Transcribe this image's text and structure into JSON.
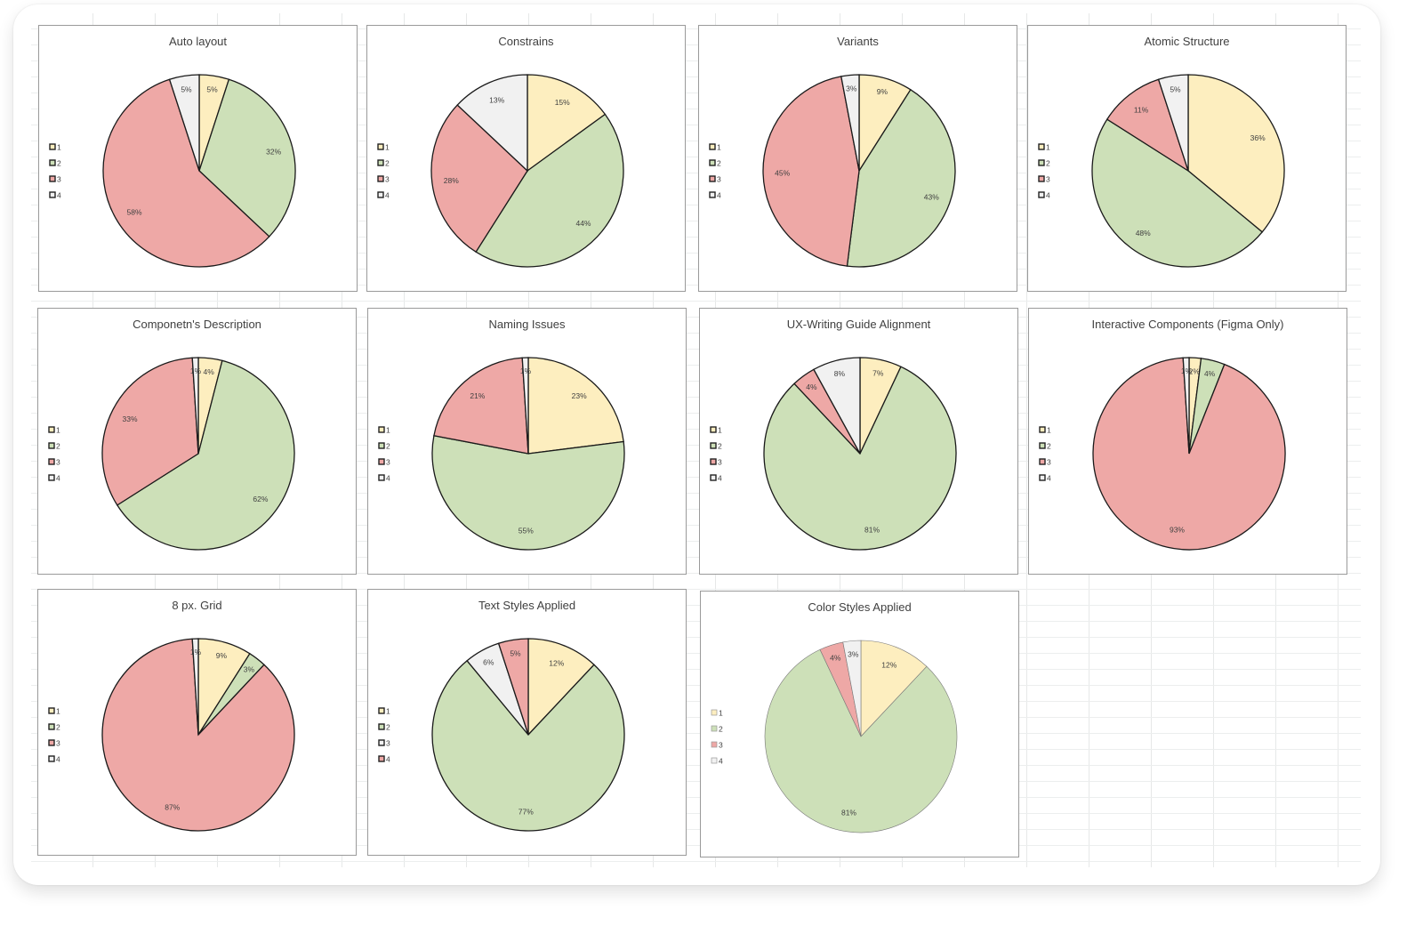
{
  "colors": {
    "1": "#fdeebf",
    "2": "#cde0b8",
    "3": "#eea8a6",
    "4": "#f1f1f1",
    "stroke": "#1a1a1a"
  },
  "legend_labels": [
    "1",
    "2",
    "3",
    "4"
  ],
  "chart_data": [
    {
      "type": "pie",
      "title": "Auto layout",
      "slices": [
        {
          "category": "1",
          "value": 5,
          "label": "5%",
          "color": "1"
        },
        {
          "category": "2",
          "value": 32,
          "label": "32%",
          "color": "2"
        },
        {
          "category": "3",
          "value": 58,
          "label": "58%",
          "color": "3"
        },
        {
          "category": "4",
          "value": 5,
          "label": "5%",
          "color": "4"
        }
      ],
      "legend": "left"
    },
    {
      "type": "pie",
      "title": "Constrains",
      "slices": [
        {
          "category": "1",
          "value": 15,
          "label": "15%",
          "color": "1"
        },
        {
          "category": "2",
          "value": 44,
          "label": "44%",
          "color": "2"
        },
        {
          "category": "3",
          "value": 28,
          "label": "28%",
          "color": "3"
        },
        {
          "category": "4",
          "value": 13,
          "label": "13%",
          "color": "4"
        }
      ],
      "legend": "left"
    },
    {
      "type": "pie",
      "title": "Variants",
      "slices": [
        {
          "category": "1",
          "value": 9,
          "label": "9%",
          "color": "1"
        },
        {
          "category": "2",
          "value": 43,
          "label": "43%",
          "color": "2"
        },
        {
          "category": "3",
          "value": 45,
          "label": "45%",
          "color": "3"
        },
        {
          "category": "4",
          "value": 3,
          "label": "3%",
          "color": "4"
        }
      ],
      "legend": "left"
    },
    {
      "type": "pie",
      "title": "Atomic Structure",
      "slices": [
        {
          "category": "1",
          "value": 36,
          "label": "36%",
          "color": "1"
        },
        {
          "category": "2",
          "value": 48,
          "label": "48%",
          "color": "2"
        },
        {
          "category": "3",
          "value": 11,
          "label": "11%",
          "color": "3"
        },
        {
          "category": "4",
          "value": 5,
          "label": "5%",
          "color": "4"
        }
      ],
      "legend": "left"
    },
    {
      "type": "pie",
      "title": "Componetn's Description",
      "slices": [
        {
          "category": "1",
          "value": 4,
          "label": "4%",
          "color": "1"
        },
        {
          "category": "2",
          "value": 62,
          "label": "62%",
          "color": "2"
        },
        {
          "category": "3",
          "value": 33,
          "label": "33%",
          "color": "3"
        },
        {
          "category": "4",
          "value": 1,
          "label": "1%",
          "color": "4"
        }
      ],
      "legend": "left"
    },
    {
      "type": "pie",
      "title": "Naming Issues",
      "slices": [
        {
          "category": "1",
          "value": 23,
          "label": "23%",
          "color": "1"
        },
        {
          "category": "2",
          "value": 55,
          "label": "55%",
          "color": "2"
        },
        {
          "category": "3",
          "value": 21,
          "label": "21%",
          "color": "3"
        },
        {
          "category": "4",
          "value": 1,
          "label": "1%",
          "color": "4"
        }
      ],
      "legend": "left"
    },
    {
      "type": "pie",
      "title": "UX-Writing Guide Alignment",
      "slices": [
        {
          "category": "1",
          "value": 7,
          "label": "7%",
          "color": "1"
        },
        {
          "category": "2",
          "value": 81,
          "label": "81%",
          "color": "2"
        },
        {
          "category": "3",
          "value": 4,
          "label": "4%",
          "color": "3"
        },
        {
          "category": "4",
          "value": 8,
          "label": "8%",
          "color": "4"
        }
      ],
      "legend": "left"
    },
    {
      "type": "pie",
      "title": "Interactive Components (Figma Only)",
      "slices": [
        {
          "category": "1",
          "value": 2,
          "label": "2%",
          "color": "1"
        },
        {
          "category": "2",
          "value": 4,
          "label": "4%",
          "color": "2"
        },
        {
          "category": "3",
          "value": 93,
          "label": "93%",
          "color": "3"
        },
        {
          "category": "4",
          "value": 1,
          "label": "1%",
          "color": "4"
        }
      ],
      "legend": "left"
    },
    {
      "type": "pie",
      "title": "8 px. Grid",
      "slices": [
        {
          "category": "1",
          "value": 9,
          "label": "9%",
          "color": "1"
        },
        {
          "category": "2",
          "value": 3,
          "label": "3%",
          "color": "2"
        },
        {
          "category": "3",
          "value": 87,
          "label": "87%",
          "color": "3"
        },
        {
          "category": "4",
          "value": 1,
          "label": "1%",
          "color": "4"
        }
      ],
      "legend": "left"
    },
    {
      "type": "pie",
      "title": "Text Styles Applied",
      "slices": [
        {
          "category": "1",
          "value": 12,
          "label": "12%",
          "color": "1"
        },
        {
          "category": "2",
          "value": 77,
          "label": "77%",
          "color": "2"
        },
        {
          "category": "3",
          "value": 6,
          "label": "6%",
          "color": "4"
        },
        {
          "category": "4",
          "value": 5,
          "label": "5%",
          "color": "3"
        }
      ],
      "legend": "left"
    },
    {
      "type": "pie",
      "title": "Color Styles Applied",
      "slices": [
        {
          "category": "1",
          "value": 12,
          "label": "12%",
          "color": "1"
        },
        {
          "category": "2",
          "value": 81,
          "label": "81%",
          "color": "2"
        },
        {
          "category": "3",
          "value": 4,
          "label": "4%",
          "color": "3"
        },
        {
          "category": "4",
          "value": 3,
          "label": "3%",
          "color": "4"
        }
      ],
      "legend": "left",
      "thin_outline": true
    }
  ]
}
